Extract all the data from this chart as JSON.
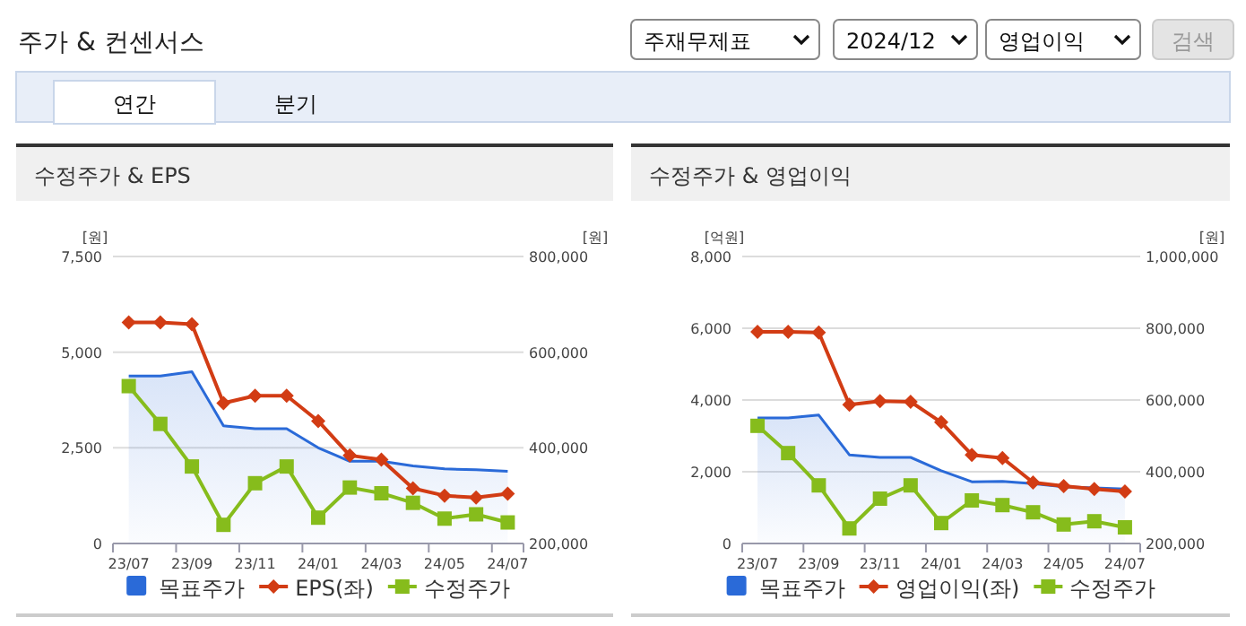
{
  "chart_data": [
    {
      "type": "line",
      "title": "수정주가 & EPS",
      "annotations": [
        "주가 & 컨센서스",
        "주재무제표",
        "2024/12",
        "영업이익",
        "검색",
        "연간",
        "분기"
      ],
      "categories": [
        "23/07",
        null,
        "23/09",
        null,
        "23/11",
        null,
        "24/01",
        null,
        "24/03",
        null,
        "24/05",
        null,
        "24/07"
      ],
      "ylabel": "[원]",
      "y2label": "[원]",
      "ylim": [
        0,
        7500
      ],
      "yticks": [
        {
          "value": 0,
          "label": "0"
        },
        {
          "value": 2500,
          "label": "2,500"
        },
        {
          "value": 5000,
          "label": "5,000"
        },
        {
          "value": 7500,
          "label": "7,500"
        }
      ],
      "y2lim": [
        200000,
        800000
      ],
      "y2ticks": [
        {
          "value": 200000,
          "label": "200,000"
        },
        {
          "value": 400000,
          "label": "400,000"
        },
        {
          "value": 600000,
          "label": "600,000"
        },
        {
          "value": 800000,
          "label": "800,000"
        }
      ],
      "grid": "y",
      "legend": "bottom",
      "series": [
        {
          "name": "목표주가",
          "type": "area",
          "axis": "y2",
          "color": "#2a6ad8",
          "values": [
            550000,
            550000,
            559000,
            446000,
            440000,
            440000,
            400000,
            372000,
            372000,
            362000,
            356000,
            354000,
            351000
          ]
        },
        {
          "name": "EPS(좌)",
          "marker": "diamond",
          "color": "#d23c14",
          "values": [
            5780,
            5780,
            5730,
            3670,
            3860,
            3860,
            3200,
            2300,
            2190,
            1440,
            1250,
            1200,
            1300
          ]
        },
        {
          "name": "수정주가",
          "marker": "square",
          "axis": "y2",
          "color": "#86bc1c",
          "values": [
            529000,
            450000,
            361000,
            239000,
            326000,
            361000,
            254000,
            317000,
            305000,
            285000,
            252000,
            261000,
            244000
          ]
        }
      ]
    },
    {
      "type": "line",
      "title": "수정주가 & 영업이익",
      "categories": [
        "23/07",
        null,
        "23/09",
        null,
        "23/11",
        null,
        "24/01",
        null,
        "24/03",
        null,
        "24/05",
        null,
        "24/07"
      ],
      "ylabel": "[억원]",
      "y2label": "[원]",
      "ylim": [
        0,
        8000
      ],
      "yticks": [
        {
          "value": 0,
          "label": "0"
        },
        {
          "value": 2000,
          "label": "2,000"
        },
        {
          "value": 4000,
          "label": "4,000"
        },
        {
          "value": 6000,
          "label": "6,000"
        },
        {
          "value": 8000,
          "label": "8,000"
        }
      ],
      "y2lim": [
        200000,
        1000000
      ],
      "y2ticks": [
        {
          "value": 200000,
          "label": "200,000"
        },
        {
          "value": 400000,
          "label": "400,000"
        },
        {
          "value": 600000,
          "label": "600,000"
        },
        {
          "value": 800000,
          "label": "800,000"
        },
        {
          "value": 1000000,
          "label": "1,000,000"
        }
      ],
      "grid": "y",
      "legend": "bottom",
      "series": [
        {
          "name": "목표주가",
          "type": "area",
          "axis": "y2",
          "color": "#2a6ad8",
          "values": [
            550000,
            550000,
            558000,
            447000,
            440000,
            440000,
            403000,
            372000,
            373000,
            367000,
            358000,
            355000,
            352000
          ]
        },
        {
          "name": "영업이익(좌)",
          "marker": "diamond",
          "color": "#d23c14",
          "values": [
            5900,
            5900,
            5880,
            3870,
            3970,
            3950,
            3380,
            2470,
            2380,
            1700,
            1600,
            1520,
            1450
          ]
        },
        {
          "name": "수정주가",
          "marker": "square",
          "axis": "y2",
          "color": "#86bc1c",
          "values": [
            528000,
            452000,
            362000,
            242000,
            325000,
            362000,
            257000,
            320000,
            307000,
            287000,
            253000,
            262000,
            245000
          ]
        }
      ]
    }
  ]
}
